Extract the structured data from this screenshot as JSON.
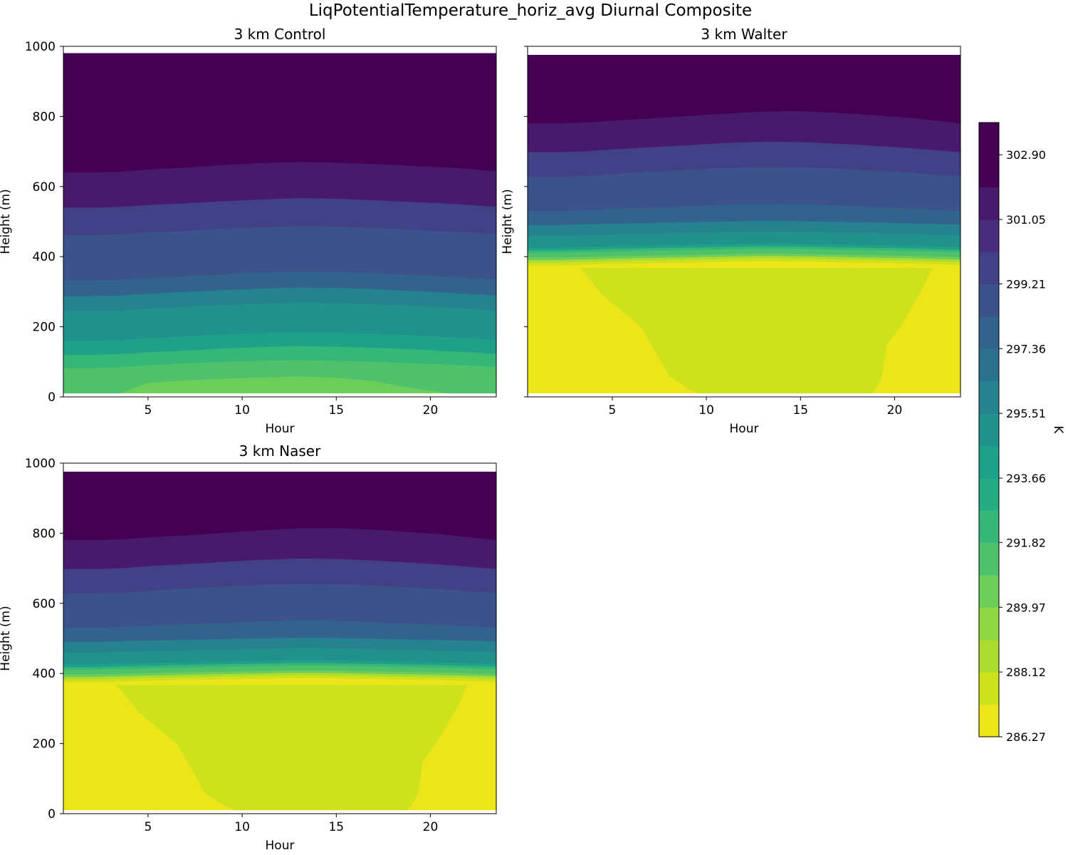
{
  "figure": {
    "suptitle": "LiqPotentialTemperature_horiz_avg Diurnal Composite"
  },
  "chart_data": [
    {
      "type": "contourf",
      "title": "3 km Control",
      "xlabel": "Hour",
      "ylabel": "Height (m)",
      "xlim": [
        0.5,
        23.5
      ],
      "ylim": [
        0,
        1000
      ],
      "xticks": [
        5,
        10,
        15,
        20
      ],
      "yticks": [
        0,
        200,
        400,
        600,
        800,
        1000
      ],
      "show_yticklabels": true,
      "data_top_height": 980,
      "data_bottom_height": 10,
      "boundaries": [
        {
          "level": 290.9,
          "heights": [
            10,
            10,
            10,
            40,
            47,
            52,
            55,
            58,
            55,
            45,
            25,
            10,
            10,
            10
          ]
        },
        {
          "level": 291.8,
          "heights": [
            45,
            45,
            50,
            58,
            65,
            72,
            75,
            78,
            75,
            70,
            62,
            55,
            50,
            45
          ]
        },
        {
          "level": 292.7,
          "heights": [
            82,
            82,
            84,
            90,
            96,
            100,
            103,
            105,
            103,
            100,
            96,
            92,
            88,
            85
          ]
        },
        {
          "level": 293.7,
          "heights": [
            120,
            120,
            122,
            127,
            132,
            138,
            142,
            145,
            143,
            140,
            136,
            130,
            126,
            122
          ]
        },
        {
          "level": 294.6,
          "heights": [
            160,
            160,
            162,
            167,
            172,
            178,
            182,
            185,
            183,
            180,
            176,
            170,
            166,
            162
          ]
        },
        {
          "level": 295.5,
          "heights": [
            205,
            205,
            207,
            212,
            217,
            222,
            226,
            229,
            228,
            224,
            220,
            215,
            210,
            207
          ]
        },
        {
          "level": 296.4,
          "heights": [
            245,
            245,
            247,
            252,
            257,
            262,
            266,
            270,
            268,
            264,
            260,
            255,
            250,
            247
          ]
        },
        {
          "level": 297.4,
          "heights": [
            287,
            287,
            289,
            294,
            299,
            304,
            309,
            312,
            311,
            307,
            302,
            297,
            292,
            289
          ]
        },
        {
          "level": 298.3,
          "heights": [
            332,
            332,
            334,
            339,
            344,
            350,
            355,
            358,
            357,
            353,
            348,
            343,
            338,
            334
          ]
        },
        {
          "level": 299.2,
          "heights": [
            390,
            390,
            392,
            397,
            402,
            408,
            412,
            415,
            414,
            410,
            405,
            400,
            396,
            392
          ]
        },
        {
          "level": 300.1,
          "heights": [
            462,
            462,
            464,
            469,
            474,
            480,
            484,
            487,
            486,
            482,
            477,
            472,
            468,
            464
          ]
        },
        {
          "level": 301.1,
          "heights": [
            540,
            540,
            542,
            547,
            552,
            558,
            563,
            567,
            565,
            561,
            556,
            551,
            546,
            542
          ]
        },
        {
          "level": 302.0,
          "heights": [
            640,
            640,
            642,
            648,
            654,
            661,
            667,
            670,
            668,
            664,
            659,
            654,
            648,
            643
          ]
        },
        {
          "level": 302.9,
          "heights": [
            757,
            757,
            760,
            766,
            772,
            780,
            788,
            795,
            796,
            792,
            785,
            777,
            768,
            760
          ]
        },
        {
          "level": 303.8,
          "heights": [
            900,
            900,
            897,
            900,
            906,
            915,
            928,
            945,
            956,
            958,
            950,
            935,
            915,
            900
          ]
        }
      ]
    },
    {
      "type": "contourf",
      "title": "3 km Walter",
      "xlabel": "Hour",
      "ylabel": "Height (m)",
      "xlim": [
        0.5,
        23.5
      ],
      "ylim": [
        0,
        1000
      ],
      "xticks": [
        5,
        10,
        15,
        20
      ],
      "yticks": [
        0,
        200,
        400,
        600,
        800,
        1000
      ],
      "show_yticklabels": false,
      "data_top_height": 975,
      "data_bottom_height": 10,
      "warm_core": {
        "level": 287.2,
        "boundary": [
          [
            3.3,
            367
          ],
          [
            4.5,
            290
          ],
          [
            6.5,
            200
          ],
          [
            7.3,
            130
          ],
          [
            8,
            60
          ],
          [
            9,
            25
          ],
          [
            9.6,
            10
          ],
          [
            18.8,
            10
          ],
          [
            19.3,
            50
          ],
          [
            19.6,
            150
          ],
          [
            20.3,
            200
          ],
          [
            21.4,
            300
          ],
          [
            22,
            367
          ]
        ]
      },
      "boundaries": [
        {
          "level": 288.1,
          "heights": [
            375,
            375,
            377,
            379,
            381,
            383,
            385,
            387,
            386,
            384,
            382,
            380,
            378,
            376
          ]
        },
        {
          "level": 289.0,
          "heights": [
            383,
            383,
            385,
            387,
            389,
            391,
            393,
            395,
            394,
            392,
            390,
            388,
            386,
            384
          ]
        },
        {
          "level": 290.0,
          "heights": [
            390,
            390,
            392,
            394,
            396,
            398,
            400,
            402,
            401,
            399,
            397,
            395,
            393,
            391
          ]
        },
        {
          "level": 290.9,
          "heights": [
            397,
            397,
            399,
            401,
            403,
            405,
            407,
            409,
            408,
            406,
            404,
            402,
            400,
            398
          ]
        },
        {
          "level": 291.8,
          "heights": [
            404,
            404,
            406,
            408,
            410,
            412,
            414,
            416,
            415,
            413,
            411,
            409,
            407,
            405
          ]
        },
        {
          "level": 292.7,
          "heights": [
            411,
            411,
            413,
            415,
            417,
            419,
            421,
            423,
            422,
            420,
            418,
            416,
            414,
            412
          ]
        },
        {
          "level": 293.7,
          "heights": [
            418,
            418,
            420,
            422,
            424,
            426,
            428,
            430,
            429,
            427,
            425,
            423,
            421,
            419
          ]
        },
        {
          "level": 294.6,
          "heights": [
            426,
            426,
            428,
            430,
            432,
            434,
            436,
            438,
            437,
            435,
            433,
            431,
            429,
            427
          ]
        },
        {
          "level": 295.5,
          "heights": [
            438,
            438,
            440,
            442,
            444,
            446,
            448,
            450,
            449,
            447,
            445,
            443,
            441,
            439
          ]
        },
        {
          "level": 296.4,
          "heights": [
            460,
            460,
            462,
            464,
            466,
            468,
            470,
            472,
            471,
            469,
            467,
            465,
            463,
            461
          ]
        },
        {
          "level": 297.4,
          "heights": [
            490,
            490,
            492,
            494,
            496,
            498,
            500,
            502,
            501,
            499,
            497,
            495,
            493,
            491
          ]
        },
        {
          "level": 298.3,
          "heights": [
            530,
            530,
            532,
            536,
            540,
            544,
            548,
            551,
            550,
            546,
            542,
            537,
            533,
            530
          ]
        },
        {
          "level": 299.2,
          "heights": [
            575,
            575,
            577,
            582,
            587,
            592,
            596,
            599,
            598,
            594,
            589,
            584,
            579,
            576
          ]
        },
        {
          "level": 300.1,
          "heights": [
            628,
            628,
            630,
            636,
            642,
            648,
            653,
            656,
            655,
            651,
            645,
            639,
            633,
            630
          ]
        },
        {
          "level": 301.1,
          "heights": [
            698,
            698,
            700,
            706,
            712,
            718,
            724,
            728,
            727,
            722,
            716,
            709,
            702,
            698
          ]
        },
        {
          "level": 302.0,
          "heights": [
            780,
            780,
            782,
            788,
            794,
            801,
            808,
            814,
            815,
            810,
            803,
            795,
            786,
            780
          ]
        },
        {
          "level": 302.9,
          "heights": [
            850,
            850,
            852,
            856,
            862,
            870,
            880,
            890,
            895,
            892,
            885,
            875,
            862,
            850
          ]
        }
      ]
    },
    {
      "type": "contourf",
      "title": "3 km Naser",
      "xlabel": "Hour",
      "ylabel": "Height (m)",
      "xlim": [
        0.5,
        23.5
      ],
      "ylim": [
        0,
        1000
      ],
      "xticks": [
        5,
        10,
        15,
        20
      ],
      "yticks": [
        0,
        200,
        400,
        600,
        800,
        1000
      ],
      "show_yticklabels": true,
      "data_top_height": 975,
      "data_bottom_height": 10,
      "warm_core": {
        "level": 287.2,
        "boundary": [
          [
            3.3,
            367
          ],
          [
            4.5,
            290
          ],
          [
            6.5,
            200
          ],
          [
            7.3,
            130
          ],
          [
            8,
            60
          ],
          [
            9,
            25
          ],
          [
            9.6,
            10
          ],
          [
            18.8,
            10
          ],
          [
            19.3,
            50
          ],
          [
            19.6,
            150
          ],
          [
            20.3,
            200
          ],
          [
            21.4,
            300
          ],
          [
            22,
            367
          ]
        ]
      },
      "boundaries": [
        {
          "level": 288.1,
          "heights": [
            375,
            375,
            377,
            379,
            381,
            383,
            385,
            387,
            386,
            384,
            382,
            380,
            378,
            376
          ]
        },
        {
          "level": 289.0,
          "heights": [
            383,
            383,
            385,
            387,
            389,
            391,
            393,
            395,
            394,
            392,
            390,
            388,
            386,
            384
          ]
        },
        {
          "level": 290.0,
          "heights": [
            390,
            390,
            392,
            394,
            396,
            398,
            400,
            402,
            401,
            399,
            397,
            395,
            393,
            391
          ]
        },
        {
          "level": 290.9,
          "heights": [
            397,
            397,
            399,
            401,
            403,
            405,
            407,
            409,
            408,
            406,
            404,
            402,
            400,
            398
          ]
        },
        {
          "level": 291.8,
          "heights": [
            404,
            404,
            406,
            408,
            410,
            412,
            414,
            416,
            415,
            413,
            411,
            409,
            407,
            405
          ]
        },
        {
          "level": 292.7,
          "heights": [
            411,
            411,
            413,
            415,
            417,
            419,
            421,
            423,
            422,
            420,
            418,
            416,
            414,
            412
          ]
        },
        {
          "level": 293.7,
          "heights": [
            418,
            418,
            420,
            422,
            424,
            426,
            428,
            430,
            429,
            427,
            425,
            423,
            421,
            419
          ]
        },
        {
          "level": 294.6,
          "heights": [
            426,
            426,
            428,
            430,
            432,
            434,
            436,
            438,
            437,
            435,
            433,
            431,
            429,
            427
          ]
        },
        {
          "level": 295.5,
          "heights": [
            438,
            438,
            440,
            442,
            444,
            446,
            448,
            450,
            449,
            447,
            445,
            443,
            441,
            439
          ]
        },
        {
          "level": 296.4,
          "heights": [
            460,
            460,
            462,
            464,
            466,
            468,
            470,
            472,
            471,
            469,
            467,
            465,
            463,
            461
          ]
        },
        {
          "level": 297.4,
          "heights": [
            490,
            490,
            492,
            494,
            496,
            498,
            500,
            502,
            501,
            499,
            497,
            495,
            493,
            491
          ]
        },
        {
          "level": 298.3,
          "heights": [
            530,
            530,
            532,
            536,
            540,
            544,
            548,
            551,
            550,
            546,
            542,
            537,
            533,
            530
          ]
        },
        {
          "level": 299.2,
          "heights": [
            575,
            575,
            577,
            582,
            587,
            592,
            596,
            599,
            598,
            594,
            589,
            584,
            579,
            576
          ]
        },
        {
          "level": 300.1,
          "heights": [
            628,
            628,
            630,
            636,
            642,
            648,
            653,
            656,
            655,
            651,
            645,
            639,
            633,
            630
          ]
        },
        {
          "level": 301.1,
          "heights": [
            698,
            698,
            700,
            706,
            712,
            718,
            724,
            728,
            727,
            722,
            716,
            709,
            702,
            698
          ]
        },
        {
          "level": 302.0,
          "heights": [
            780,
            780,
            782,
            788,
            794,
            801,
            808,
            814,
            815,
            810,
            803,
            795,
            786,
            780
          ]
        },
        {
          "level": 302.9,
          "heights": [
            850,
            850,
            852,
            856,
            862,
            870,
            880,
            890,
            895,
            892,
            885,
            875,
            862,
            850
          ]
        }
      ]
    }
  ],
  "boundary_hours": [
    0.5,
    2,
    3.5,
    5,
    7,
    9,
    11,
    13,
    15,
    17,
    19,
    21,
    22.5,
    23.5
  ],
  "colorbar": {
    "label": "K",
    "vmin": 286.27,
    "vmax": 303.82,
    "ticks": [
      "286.27",
      "288.12",
      "289.97",
      "291.82",
      "293.66",
      "295.51",
      "297.36",
      "299.21",
      "301.05",
      "302.90"
    ],
    "levels": [
      286.27,
      287.19,
      288.12,
      289.04,
      289.97,
      290.89,
      291.82,
      292.74,
      293.66,
      294.59,
      295.51,
      296.44,
      297.36,
      298.28,
      299.21,
      300.13,
      301.05,
      301.98,
      302.9,
      303.82
    ],
    "colors": [
      "#ebe51a",
      "#cde11d",
      "#addc30",
      "#8fd744",
      "#6ccd5a",
      "#4fc16b",
      "#35b779",
      "#25ac82",
      "#1fa088",
      "#21918c",
      "#26828e",
      "#2c728e",
      "#33638d",
      "#3b528b",
      "#424086",
      "#472d7b",
      "#481a6c",
      "#440154",
      "#440154"
    ]
  }
}
